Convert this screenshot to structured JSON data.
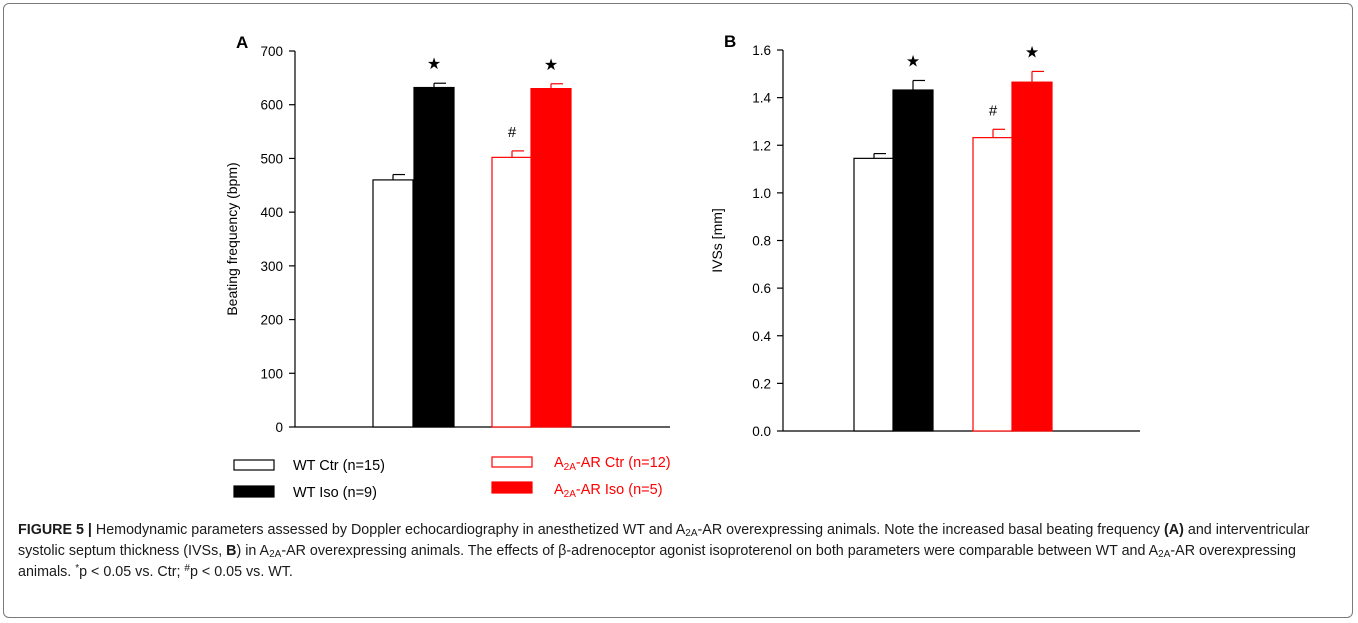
{
  "chart_data": [
    {
      "type": "bar",
      "panel_label": "A",
      "ylabel": "Beating frequency (bpm)",
      "ylim": [
        0,
        700
      ],
      "yticks": [
        0,
        100,
        200,
        300,
        400,
        500,
        600,
        700
      ],
      "series": [
        {
          "name": "WT Ctr (n=15)",
          "value": 460,
          "error": 10,
          "marker": ""
        },
        {
          "name": "WT Iso (n=9)",
          "value": 632,
          "error": 8,
          "marker": "★"
        },
        {
          "name": "A2A-AR Ctr (n=12)",
          "value": 502,
          "error": 12,
          "marker": "#"
        },
        {
          "name": "A2A-AR Iso (n=5)",
          "value": 630,
          "error": 9,
          "marker": "★"
        }
      ]
    },
    {
      "type": "bar",
      "panel_label": "B",
      "ylabel": "IVSs [mm]",
      "ylim": [
        0,
        1.6
      ],
      "yticks": [
        "0.0",
        "0.2",
        "0.4",
        "0.6",
        "0.8",
        "1.0",
        "1.2",
        "1.4",
        "1.6"
      ],
      "series": [
        {
          "name": "WT Ctr (n=15)",
          "value": 1.145,
          "error": 0.02,
          "marker": ""
        },
        {
          "name": "WT Iso (n=9)",
          "value": 1.432,
          "error": 0.04,
          "marker": "★"
        },
        {
          "name": "A2A-AR Ctr (n=12)",
          "value": 1.232,
          "error": 0.035,
          "marker": "#"
        },
        {
          "name": "A2A-AR Iso (n=5)",
          "value": 1.465,
          "error": 0.045,
          "marker": "★"
        }
      ]
    }
  ],
  "legend": {
    "wt_ctr": "WT Ctr (n=15)",
    "wt_iso": "WT Iso (n=9)",
    "a2a_ctr_pre": "A",
    "a2a_ctr_sub": "2A",
    "a2a_ctr_post": "-AR Ctr (n=12)",
    "a2a_iso_pre": "A",
    "a2a_iso_sub": "2A",
    "a2a_iso_post": "-AR Iso (n=5)"
  },
  "colors": {
    "wt_ctr_fill": "#ffffff",
    "wt_iso_fill": "#000000",
    "a2a_ctr_fill": "#ffffff",
    "a2a_iso_fill": "#ff0000",
    "red": "#ff0000",
    "black": "#000000"
  },
  "caption": {
    "label": "FIGURE 5 |",
    "t1": " Hemodynamic parameters assessed by Doppler echocardiography in anesthetized WT and A",
    "s1": "2A",
    "t2": "-AR overexpressing animals. Note the increased basal beating frequency ",
    "b1": "(A)",
    "t3": " and interventricular systolic septum thickness (IVSs, ",
    "b2": "B",
    "t4": ") in A",
    "s2": "2A",
    "t5": "-AR overexpressing animals. The effects of β-adrenoceptor agonist isoproterenol on both parameters were comparable between WT and A",
    "s3": "2A",
    "t6": "-AR overexpressing animals. ",
    "sup1": "*",
    "t7": "p < 0.05 vs. Ctr; ",
    "sup2": "#",
    "t8": "p < 0.05 vs. WT."
  }
}
